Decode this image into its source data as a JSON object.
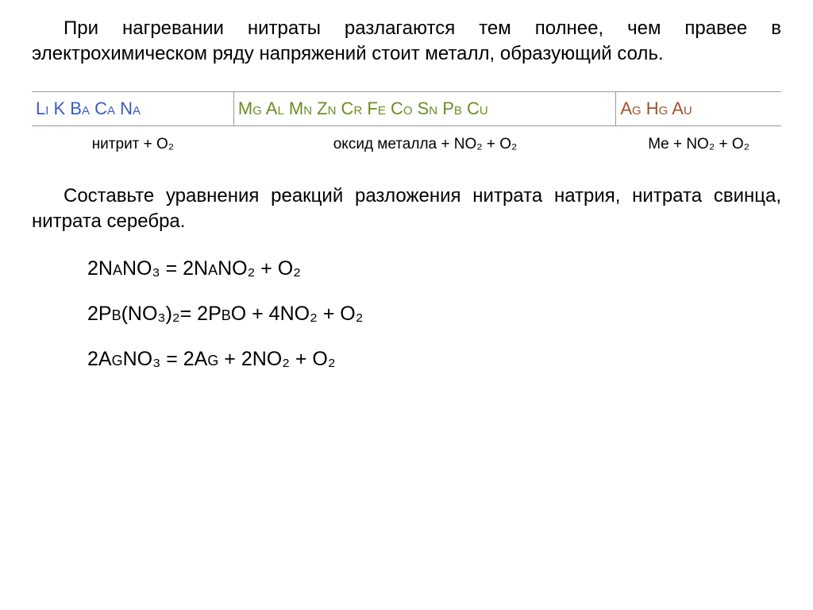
{
  "intro": "При нагревании нитраты разлагаются тем полнее, чем правее в электрохимическом ряду напряжений стоит металл, образующий соль.",
  "table": {
    "header": {
      "col1": "Li K Ba Ca Na",
      "col2": "Mg Al Mn Zn Cr Fe Co Sn Pb  Cu",
      "col3": "Ag Hg Au"
    },
    "results": {
      "col1": "нитрит + O₂",
      "col2": "оксид металла  +  NO₂ + O₂",
      "col3": "Me + NO₂ + O₂"
    },
    "colors": {
      "col1": "#3b5cc4",
      "col2": "#6b8e23",
      "col3": "#a0522d"
    }
  },
  "task": "Составьте уравнения реакций разложения нитрата натрия, нитрата свинца, нитрата серебра.",
  "equations": {
    "eq1": "2NaNO₃ = 2NaNO₂ + O₂",
    "eq2": "2Pb(NO₃)₂= 2PbO + 4NO₂ + O₂",
    "eq3": "2AgNO₃ = 2Ag + 2NO₂ + O₂"
  },
  "styling": {
    "body_bg": "#ffffff",
    "text_color": "#000000",
    "border_color": "#999999",
    "intro_fontsize": 24,
    "table_header_fontsize": 22,
    "table_result_fontsize": 19,
    "task_fontsize": 24,
    "equation_fontsize": 25
  }
}
